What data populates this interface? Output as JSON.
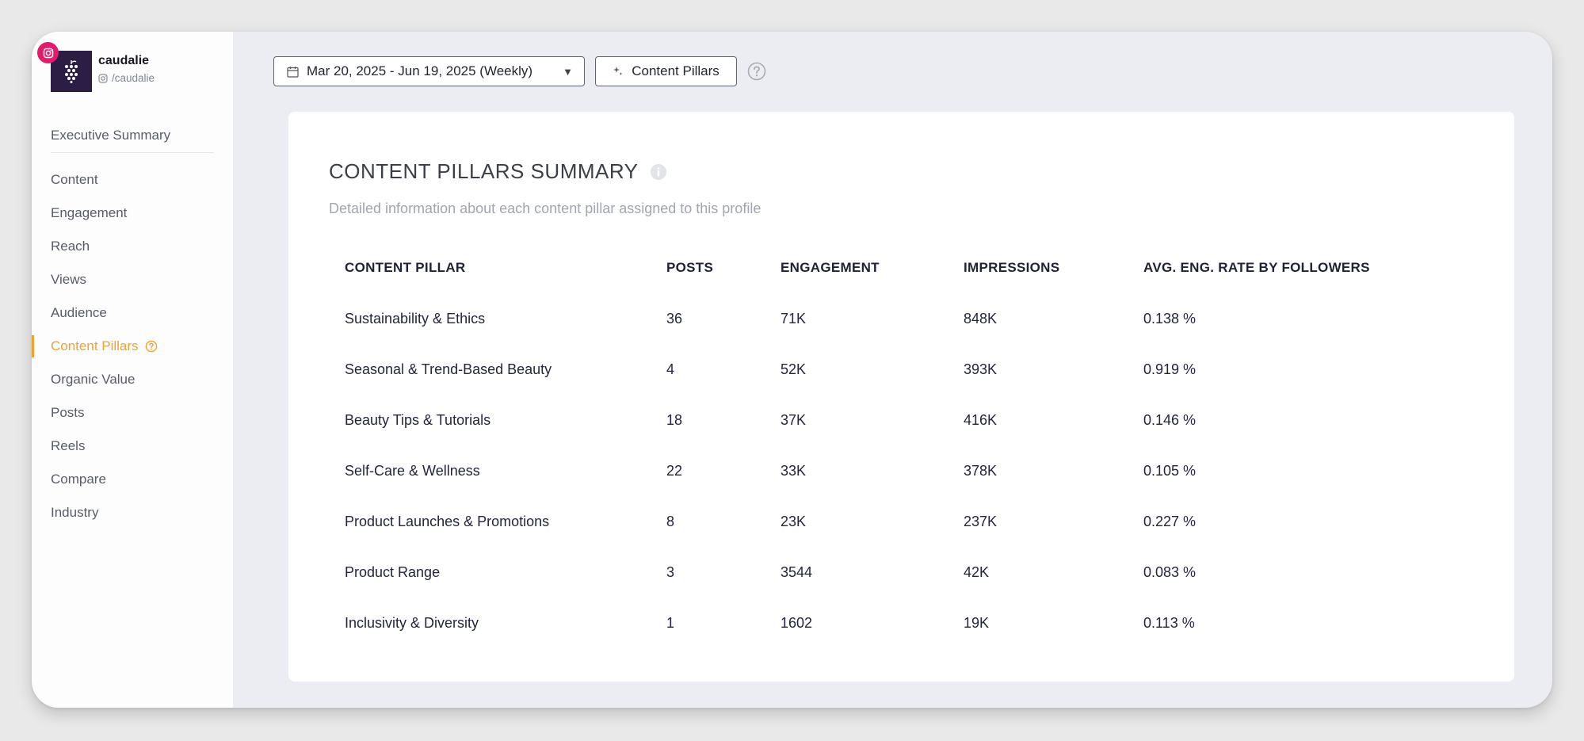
{
  "profile": {
    "name": "caudalie",
    "handle": "/caudalie",
    "brand_color": "#2b1d44",
    "instagram_badge_color": "#e6196b"
  },
  "sidebar": {
    "items": [
      {
        "label": "Executive Summary"
      },
      {
        "label": "Content"
      },
      {
        "label": "Engagement"
      },
      {
        "label": "Reach"
      },
      {
        "label": "Views"
      },
      {
        "label": "Audience"
      },
      {
        "label": "Content Pillars",
        "active": true
      },
      {
        "label": "Organic Value"
      },
      {
        "label": "Posts"
      },
      {
        "label": "Reels"
      },
      {
        "label": "Compare"
      },
      {
        "label": "Industry"
      }
    ],
    "active_color": "#f2a12e"
  },
  "toolbar": {
    "date_range": "Mar 20, 2025 - Jun 19, 2025 (Weekly)",
    "pillars_button": "Content Pillars"
  },
  "card": {
    "title": "CONTENT PILLARS SUMMARY",
    "subtitle": "Detailed information about each content pillar assigned to this profile"
  },
  "table": {
    "headers": [
      "CONTENT PILLAR",
      "POSTS",
      "ENGAGEMENT",
      "IMPRESSIONS",
      "AVG. ENG. RATE BY FOLLOWERS"
    ],
    "rows": [
      [
        "Sustainability & Ethics",
        "36",
        "71K",
        "848K",
        "0.138 %"
      ],
      [
        "Seasonal & Trend-Based Beauty",
        "4",
        "52K",
        "393K",
        "0.919 %"
      ],
      [
        "Beauty Tips & Tutorials",
        "18",
        "37K",
        "416K",
        "0.146 %"
      ],
      [
        "Self-Care & Wellness",
        "22",
        "33K",
        "378K",
        "0.105 %"
      ],
      [
        "Product Launches & Promotions",
        "8",
        "23K",
        "237K",
        "0.227 %"
      ],
      [
        "Product Range",
        "3",
        "3544",
        "42K",
        "0.083 %"
      ],
      [
        "Inclusivity & Diversity",
        "1",
        "1602",
        "19K",
        "0.113 %"
      ]
    ]
  }
}
